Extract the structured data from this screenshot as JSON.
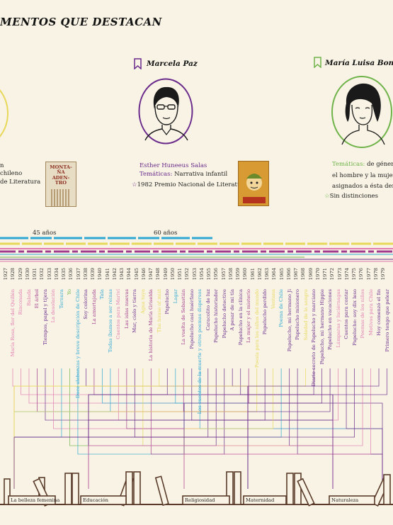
{
  "title": "MENTOS QUE DESTACAN",
  "left_partial": {
    "line1": "n",
    "line2": "chileno",
    "line3": "de Literatura"
  },
  "marcela": {
    "name": "Marcela Paz",
    "real_name": "Esther Huneeus Salas",
    "tematicas_label": "Temáticas:",
    "tematicas": "Narrativa infantil",
    "award": "1982 Premio Nacional de Literatura",
    "star": "☆"
  },
  "maria": {
    "name": "María Luisa Bombal",
    "tematicas_label": "Temáticas:",
    "line1": "de género rel",
    "line2": "el hombre y la mujer y lo",
    "line3": "asignados a ésta dentro d",
    "award": "Sin distinciones",
    "star": "☆"
  },
  "book_left_cover": "MONTA-ÑA ADEN-TRO",
  "age_labels": [
    "45 años",
    "60 años"
  ],
  "years": [
    "1927",
    "1928",
    "1929",
    "1930",
    "1931",
    "1932",
    "1933",
    "1934",
    "1935",
    "1936",
    "1937",
    "1938",
    "1939",
    "1940",
    "1941",
    "1942",
    "1943",
    "1944",
    "1945",
    "1946",
    "1947",
    "1948",
    "1949",
    "1950",
    "1951",
    "1952",
    "1953",
    "1954",
    "1955",
    "1956",
    "1957",
    "1958",
    "1959",
    "1960",
    "1961",
    "1962",
    "1963",
    "1964",
    "1965",
    "1966",
    "1967",
    "1968",
    "1969",
    "1970",
    "1971",
    "1972",
    "1973",
    "1974",
    "1975",
    "1976",
    "1977",
    "1978",
    "1979"
  ],
  "books": [
    {
      "t": "María Rosa, flor del Quillén",
      "c": "#e07ab0"
    },
    {
      "t": "Rinconada",
      "c": "#e07ab0"
    },
    {
      "t": "Balada",
      "c": "#e07ab0"
    },
    {
      "t": "El árbol",
      "c": "#a13a8c"
    },
    {
      "t": "Tiempos, papel y tijera",
      "c": "#6a2a8c"
    },
    {
      "t": "La desolación",
      "c": "#e07ab0"
    },
    {
      "t": "Ternura",
      "c": "#2fa7d4"
    },
    {
      "t": "Yo",
      "c": "#6fb34a"
    },
    {
      "t": "Doce alabanzas y breve descripción de Chile",
      "c": "#2fa7d4"
    },
    {
      "t": "Soy colorina",
      "c": "#6a2a8c"
    },
    {
      "t": "La amortajada",
      "c": "#a13a8c"
    },
    {
      "t": "Tala",
      "c": "#2fa7d4"
    },
    {
      "t": "Todas íbamos a ser reinas",
      "c": "#2fa7d4"
    },
    {
      "t": "Cuentos para Mariví",
      "c": "#e07ab0"
    },
    {
      "t": "Las islas nuevas",
      "c": "#a13a8c"
    },
    {
      "t": "Mar, cielo y tierra",
      "c": "#6a2a8c"
    },
    {
      "t": "Agua tuya",
      "c": "#e8d85a"
    },
    {
      "t": "La historia de María Griselda",
      "c": "#a13a8c"
    },
    {
      "t": "The house of mist",
      "c": "#e8d85a"
    },
    {
      "t": "Papelucho",
      "c": "#6a2a8c"
    },
    {
      "t": "Lagar",
      "c": "#2fa7d4"
    },
    {
      "t": "La vuelta de Sebastián",
      "c": "#a13a8c"
    },
    {
      "t": "Papelucho casi huérfano",
      "c": "#6a2a8c"
    },
    {
      "t": "Los cuentos de la muerte y otros poemas dispersos",
      "c": "#2fa7d4"
    },
    {
      "t": "Caracolito de luz",
      "c": "#6a2a8c"
    },
    {
      "t": "Papelucho historiador",
      "c": "#6a2a8c"
    },
    {
      "t": "Papelucho detective",
      "c": "#6a2a8c"
    },
    {
      "t": "A pesar de mi tía",
      "c": "#6a2a8c"
    },
    {
      "t": "Papelucho en la clínica",
      "c": "#6a2a8c"
    },
    {
      "t": "La mujer y el misterio",
      "c": "#a13a8c"
    },
    {
      "t": "Poesía para los niños del mundo",
      "c": "#e8d85a"
    },
    {
      "t": "Papelucho perdido",
      "c": "#6a2a8c"
    },
    {
      "t": "Ventana",
      "c": "#e8d85a"
    },
    {
      "t": "Poema de Chile",
      "c": "#2fa7d4"
    },
    {
      "t": "Papelucho, mi hermano Ji",
      "c": "#6a2a8c"
    },
    {
      "t": "Papelucho misionero",
      "c": "#6a2a8c"
    },
    {
      "t": "Soledad de la sangre",
      "c": "#e8d85a"
    },
    {
      "t": "Diario secreto de Papelucho y marciano",
      "c": "#6a2a8c"
    },
    {
      "t": "Papelucho, mi hermano Hippie",
      "c": "#6a2a8c"
    },
    {
      "t": "Papelucho en vacaciones",
      "c": "#6a2a8c"
    },
    {
      "t": "Lámparas y luciérnagas",
      "c": "#e07ab0"
    },
    {
      "t": "Cuentos para contar",
      "c": "#6a2a8c"
    },
    {
      "t": "Papelucho: soy dix leso",
      "c": "#6a2a8c"
    },
    {
      "t": "Poemas de los niños",
      "c": "#e07ab0"
    },
    {
      "t": "Motivos para Chile",
      "c": "#e07ab0"
    },
    {
      "t": "Hoy comenzó el fin",
      "c": "#6a2a8c"
    },
    {
      "t": "Primero tengo que pelear",
      "c": "#6a2a8c"
    }
  ],
  "shelves": [
    "La belleza femenina",
    "Educación",
    "Religiosidad",
    "Maternidad",
    "Naturaleza"
  ],
  "colors": {
    "purple": "#6a2a8c",
    "green": "#6fb34a",
    "yellow": "#e8d85a",
    "blue": "#2fa7d4",
    "pink": "#e07ab0",
    "magenta": "#a13a8c",
    "brown": "#5a3b2a"
  }
}
